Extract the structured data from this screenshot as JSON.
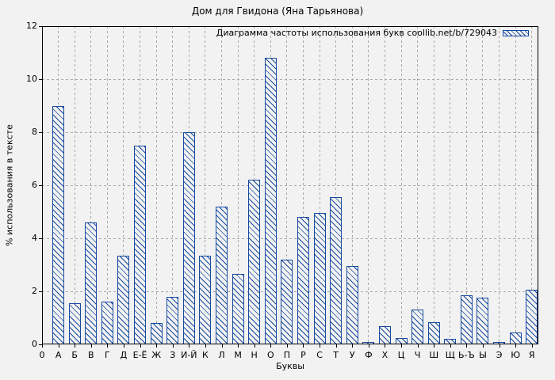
{
  "colors": {
    "bar": "#164a9f",
    "background": "#f2f2f2",
    "grid": "#a8a8a8",
    "axis": "#000000",
    "text": "#000000"
  },
  "chart_data": {
    "type": "bar",
    "title": "Дом для Гвидона (Яна Тарьянова)",
    "legend_label": "Диаграмма частоты использования букв coollib.net/b/729043",
    "legend_position": "top-right",
    "xlabel": "Буквы",
    "ylabel": "% использования в тексте",
    "ylim": [
      0,
      12
    ],
    "ytick_step": 2,
    "ytick_labels": [
      "0",
      "2",
      "4",
      "6",
      "8",
      "10",
      "12"
    ],
    "origin_label": "0",
    "grid": true,
    "bar_style": "hatched-diagonal",
    "categories": [
      "А",
      "Б",
      "В",
      "Г",
      "Д",
      "Е-Ё",
      "Ж",
      "З",
      "И-Й",
      "К",
      "Л",
      "М",
      "Н",
      "О",
      "П",
      "Р",
      "С",
      "Т",
      "У",
      "Ф",
      "Х",
      "Ц",
      "Ч",
      "Ш",
      "Щ",
      "Ь-Ъ",
      "Ы",
      "Э",
      "Ю",
      "Я"
    ],
    "values": [
      9.0,
      1.55,
      4.6,
      1.6,
      3.35,
      7.5,
      0.8,
      1.8,
      8.0,
      3.35,
      5.2,
      2.65,
      6.2,
      10.8,
      3.2,
      4.8,
      4.95,
      5.55,
      2.95,
      0.1,
      0.7,
      0.25,
      1.3,
      0.85,
      0.2,
      1.85,
      1.75,
      0.1,
      0.45,
      2.05
    ]
  }
}
